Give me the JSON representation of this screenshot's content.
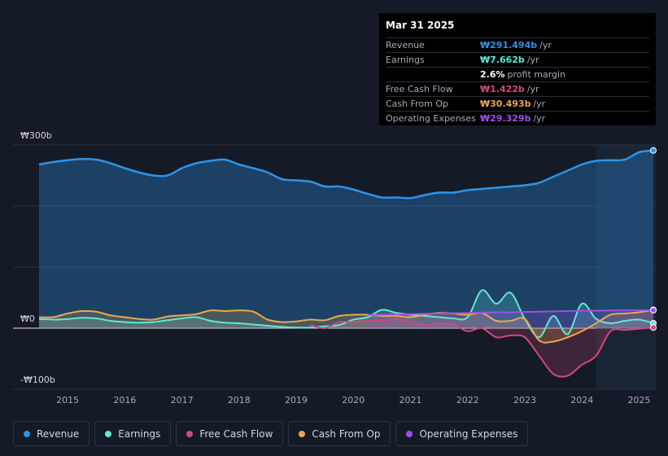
{
  "tooltip": {
    "date": "Mar 31 2025",
    "rows": [
      {
        "label": "Revenue",
        "value": "₩291.494b",
        "unit": "/yr",
        "color": "#2e93e8"
      },
      {
        "label": "Earnings",
        "value": "₩7.662b",
        "unit": "/yr",
        "color": "#5fe8d5"
      },
      {
        "label": "",
        "value": "2.6%",
        "unit": "profit margin",
        "color": "#ffffff"
      },
      {
        "label": "Free Cash Flow",
        "value": "₩1.422b",
        "unit": "/yr",
        "color": "#d4477e"
      },
      {
        "label": "Cash From Op",
        "value": "₩30.493b",
        "unit": "/yr",
        "color": "#e8a94e"
      },
      {
        "label": "Operating Expenses",
        "value": "₩29.329b",
        "unit": "/yr",
        "color": "#a24ee8"
      }
    ]
  },
  "legend": [
    {
      "label": "Revenue",
      "color": "#2e93e8"
    },
    {
      "label": "Earnings",
      "color": "#5fe8d5"
    },
    {
      "label": "Free Cash Flow",
      "color": "#d4477e"
    },
    {
      "label": "Cash From Op",
      "color": "#e8a94e"
    },
    {
      "label": "Operating Expenses",
      "color": "#a24ee8"
    }
  ],
  "chart_data": {
    "type": "area",
    "title": "",
    "ylim": [
      -100,
      300
    ],
    "y_tick_labels": [
      {
        "value": 300,
        "label": "₩300b"
      },
      {
        "value": 0,
        "label": "₩0"
      },
      {
        "value": -100,
        "label": "-₩100b"
      }
    ],
    "x_ticks": [
      2015,
      2016,
      2017,
      2018,
      2019,
      2020,
      2021,
      2022,
      2023,
      2024,
      2025
    ],
    "x_range": [
      2014.5,
      2025.25
    ],
    "forecast_start": 2024.25,
    "series": [
      {
        "name": "Revenue",
        "color": "#2e93e8",
        "x": [
          2014.5,
          2014.75,
          2015.0,
          2015.25,
          2015.5,
          2015.75,
          2016.0,
          2016.25,
          2016.5,
          2016.75,
          2017.0,
          2017.25,
          2017.5,
          2017.75,
          2018.0,
          2018.25,
          2018.5,
          2018.75,
          2019.0,
          2019.25,
          2019.5,
          2019.75,
          2020.0,
          2020.25,
          2020.5,
          2020.75,
          2021.0,
          2021.25,
          2021.5,
          2021.75,
          2022.0,
          2022.25,
          2022.5,
          2022.75,
          2023.0,
          2023.25,
          2023.5,
          2023.75,
          2024.0,
          2024.25,
          2024.5,
          2024.75,
          2025.0,
          2025.25
        ],
        "values": [
          268,
          272,
          275,
          277,
          276,
          270,
          262,
          255,
          250,
          250,
          262,
          270,
          274,
          276,
          268,
          262,
          255,
          244,
          242,
          240,
          232,
          232,
          227,
          220,
          214,
          214,
          213,
          218,
          222,
          222,
          226,
          228,
          230,
          232,
          234,
          238,
          248,
          258,
          268,
          274,
          275,
          276,
          288,
          291
        ]
      },
      {
        "name": "Earnings",
        "color": "#5fe8d5",
        "x": [
          2014.5,
          2014.75,
          2015.0,
          2015.25,
          2015.5,
          2015.75,
          2016.0,
          2016.25,
          2016.5,
          2016.75,
          2017.0,
          2017.25,
          2017.5,
          2017.75,
          2018.0,
          2018.25,
          2018.5,
          2018.75,
          2019.0,
          2019.25,
          2019.5,
          2019.75,
          2020.0,
          2020.25,
          2020.5,
          2020.75,
          2021.0,
          2021.25,
          2021.5,
          2021.75,
          2022.0,
          2022.25,
          2022.5,
          2022.75,
          2023.0,
          2023.25,
          2023.5,
          2023.75,
          2024.0,
          2024.25,
          2024.5,
          2024.75,
          2025.0,
          2025.25
        ],
        "values": [
          15,
          14,
          15,
          17,
          16,
          12,
          10,
          9,
          10,
          13,
          16,
          18,
          12,
          9,
          8,
          6,
          4,
          2,
          1,
          1,
          3,
          5,
          14,
          18,
          30,
          25,
          22,
          20,
          18,
          16,
          18,
          62,
          40,
          58,
          15,
          -15,
          20,
          -10,
          40,
          15,
          8,
          12,
          14,
          8
        ]
      },
      {
        "name": "Free Cash Flow",
        "color": "#d4477e",
        "x": [
          2019.25,
          2019.5,
          2019.75,
          2020.0,
          2020.25,
          2020.5,
          2020.75,
          2021.0,
          2021.25,
          2021.5,
          2021.75,
          2022.0,
          2022.25,
          2022.5,
          2022.75,
          2023.0,
          2023.25,
          2023.5,
          2023.75,
          2024.0,
          2024.25,
          2024.5,
          2024.75,
          2025.0,
          2025.25
        ],
        "values": [
          5,
          0,
          10,
          10,
          12,
          12,
          15,
          10,
          5,
          8,
          6,
          -5,
          0,
          -15,
          -12,
          -15,
          -45,
          -75,
          -78,
          -60,
          -45,
          -5,
          -3,
          -1,
          1
        ]
      },
      {
        "name": "Cash From Op",
        "color": "#e8a94e",
        "x": [
          2014.5,
          2014.75,
          2015.0,
          2015.25,
          2015.5,
          2015.75,
          2016.0,
          2016.25,
          2016.5,
          2016.75,
          2017.0,
          2017.25,
          2017.5,
          2017.75,
          2018.0,
          2018.25,
          2018.5,
          2018.75,
          2019.0,
          2019.25,
          2019.5,
          2019.75,
          2020.0,
          2020.25,
          2020.5,
          2020.75,
          2021.0,
          2021.25,
          2021.5,
          2021.75,
          2022.0,
          2022.25,
          2022.5,
          2022.75,
          2023.0,
          2023.25,
          2023.5,
          2023.75,
          2024.0,
          2024.25,
          2024.5,
          2024.75,
          2025.0,
          2025.25
        ],
        "values": [
          18,
          18,
          24,
          28,
          27,
          21,
          18,
          15,
          14,
          19,
          21,
          23,
          29,
          28,
          29,
          27,
          14,
          10,
          11,
          14,
          13,
          20,
          22,
          22,
          20,
          20,
          18,
          22,
          25,
          24,
          22,
          25,
          12,
          12,
          15,
          -20,
          -22,
          -15,
          -5,
          8,
          22,
          24,
          26,
          30
        ]
      },
      {
        "name": "Operating Expenses",
        "color": "#a24ee8",
        "x": [
          2020.25,
          2020.5,
          2020.75,
          2021.0,
          2021.25,
          2021.5,
          2021.75,
          2022.0,
          2022.25,
          2022.5,
          2022.75,
          2023.0,
          2023.25,
          2023.5,
          2023.75,
          2024.0,
          2024.25,
          2024.5,
          2024.75,
          2025.0,
          2025.25
        ],
        "values": [
          22,
          22,
          22.5,
          23,
          23.5,
          24,
          24.5,
          25,
          25.5,
          26,
          26,
          26.5,
          27,
          27.5,
          28,
          28.5,
          28.5,
          29,
          29,
          29.2,
          29.3
        ]
      }
    ]
  }
}
